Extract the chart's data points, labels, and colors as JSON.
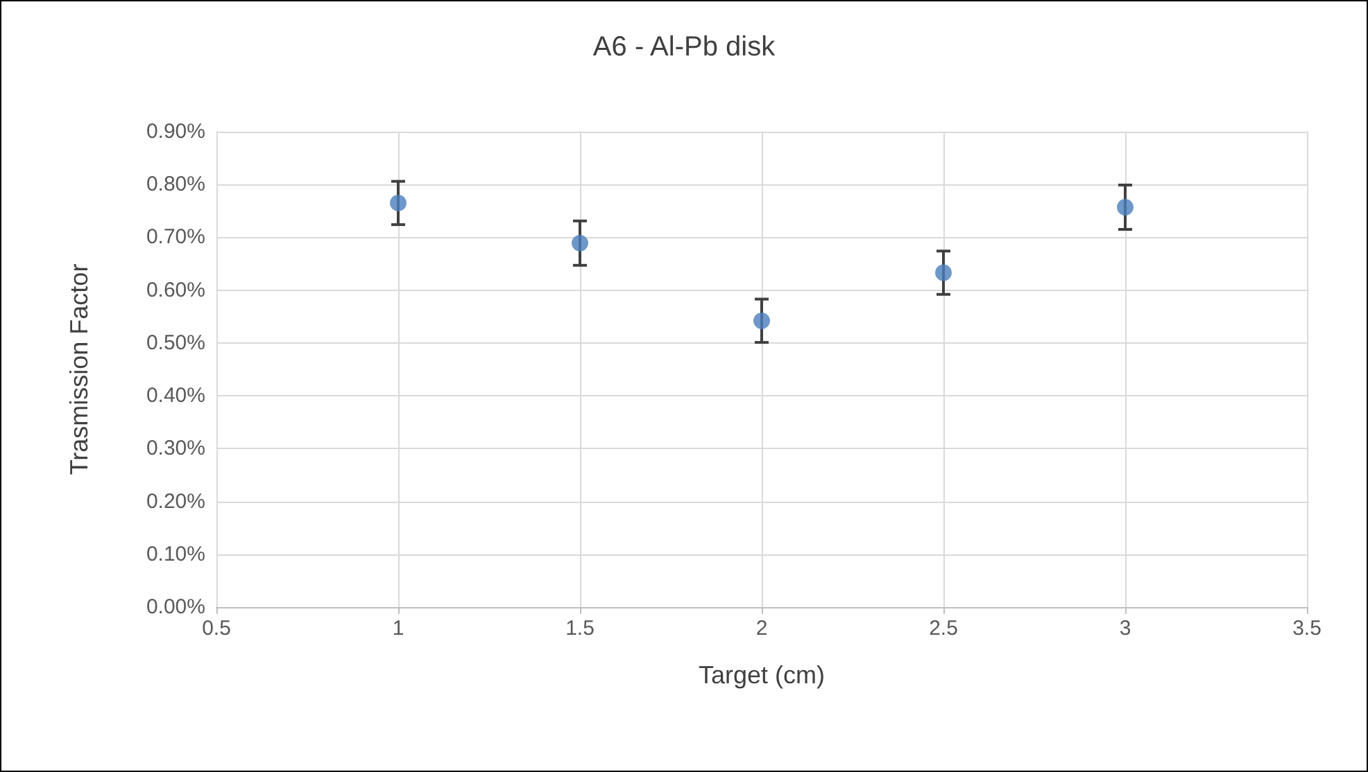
{
  "chart_data": {
    "type": "scatter",
    "title": "A6 - Al-Pb disk",
    "xlabel": "Target (cm)",
    "ylabel": "Trasmission Factor",
    "x": [
      1,
      1.5,
      2,
      2.5,
      3
    ],
    "series": [
      {
        "color": "#4a7ebb",
        "values": [
          0.765,
          0.689,
          0.542,
          0.633,
          0.757
        ],
        "errors": [
          0.041,
          0.042,
          0.041,
          0.041,
          0.042
        ]
      }
    ],
    "xlim": [
      0.5,
      3.5
    ],
    "xticks": [
      0.5,
      1,
      1.5,
      2,
      2.5,
      3,
      3.5
    ],
    "ylim": [
      0,
      0.9
    ],
    "yticks": [
      {
        "value": 0,
        "label": "0.00%"
      },
      {
        "value": 0.1,
        "label": "0.10%"
      },
      {
        "value": 0.2,
        "label": "0.20%"
      },
      {
        "value": 0.3,
        "label": "0.30%"
      },
      {
        "value": 0.4,
        "label": "0.40%"
      },
      {
        "value": 0.5,
        "label": "0.50%"
      },
      {
        "value": 0.6,
        "label": "0.60%"
      },
      {
        "value": 0.7,
        "label": "0.70%"
      },
      {
        "value": 0.8,
        "label": "0.80%"
      },
      {
        "value": 0.9,
        "label": "0.90%"
      }
    ],
    "grid": true,
    "marker": "circle"
  }
}
